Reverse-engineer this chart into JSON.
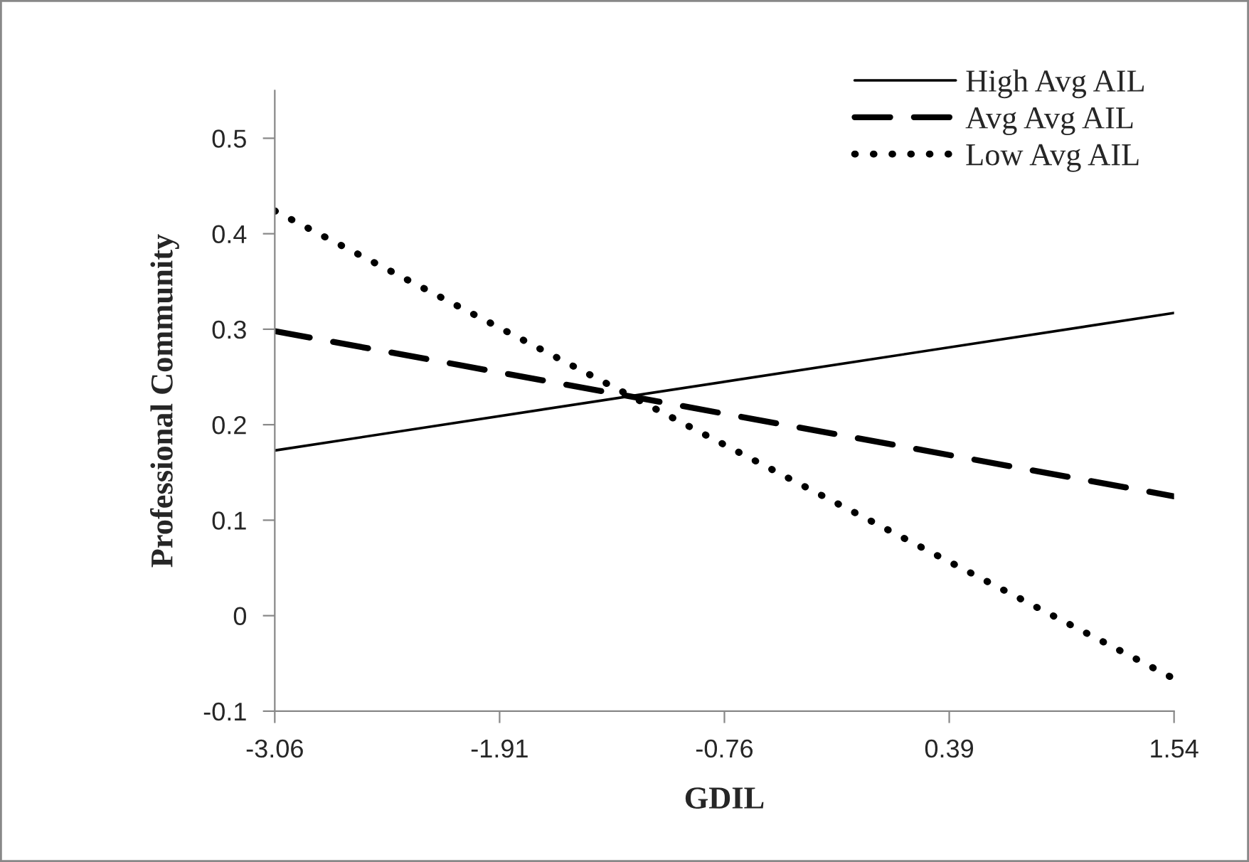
{
  "chart_data": {
    "type": "line",
    "xlabel": "GDIL",
    "ylabel": "Professional Community",
    "x": [
      -3.06,
      1.54
    ],
    "xlim": [
      -3.06,
      1.54
    ],
    "xticks": [
      -3.06,
      -1.91,
      -0.76,
      0.39,
      1.54
    ],
    "ylim": [
      -0.1,
      0.55
    ],
    "yticks": [
      -0.1,
      0,
      0.1,
      0.2,
      0.3,
      0.4,
      0.5
    ],
    "series": [
      {
        "name": "High Avg AIL",
        "color": "#000000",
        "line_style": "solid",
        "values": [
          0.173,
          0.317
        ]
      },
      {
        "name": "Avg Avg AIL",
        "color": "#000000",
        "line_style": "dashed",
        "values": [
          0.298,
          0.125
        ]
      },
      {
        "name": "Low Avg AIL",
        "color": "#000000",
        "line_style": "dotted",
        "values": [
          0.424,
          -0.066
        ]
      }
    ],
    "grid": false,
    "legend": "top right",
    "marker": "none"
  }
}
